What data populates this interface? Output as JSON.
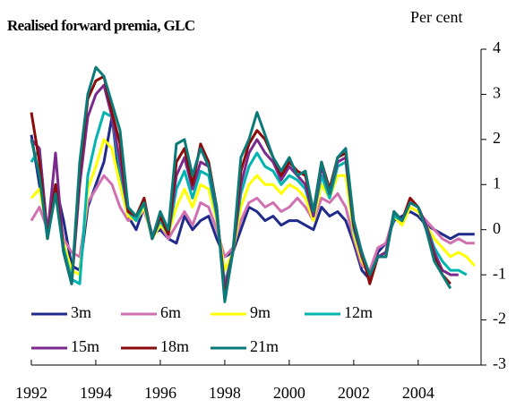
{
  "chart_data": {
    "type": "line",
    "title": "Realised forward premia, GLC",
    "ylabel": "Per cent",
    "x": [
      1992,
      1992.25,
      1992.5,
      1992.75,
      1993,
      1993.25,
      1993.5,
      1993.75,
      1994,
      1994.25,
      1994.5,
      1994.75,
      1995,
      1995.25,
      1995.5,
      1995.75,
      1996,
      1996.25,
      1996.5,
      1996.75,
      1997,
      1997.25,
      1997.5,
      1997.75,
      1998,
      1998.25,
      1998.5,
      1998.75,
      1999,
      1999.25,
      1999.5,
      1999.75,
      2000,
      2000.25,
      2000.5,
      2000.75,
      2001,
      2001.25,
      2001.5,
      2001.75,
      2002,
      2002.25,
      2002.5,
      2002.75,
      2003,
      2003.25,
      2003.5,
      2003.75,
      2004,
      2004.25,
      2004.5,
      2004.75,
      2005,
      2005.25,
      2005.5,
      2005.75
    ],
    "series": [
      {
        "name": "3m",
        "color": "#1f2a8a",
        "values": [
          2.1,
          1.0,
          0.0,
          1.0,
          0.2,
          -0.8,
          -0.9,
          0.5,
          1.0,
          1.5,
          2.5,
          1.0,
          0.3,
          0.0,
          0.5,
          -0.1,
          0.0,
          -0.2,
          -0.3,
          0.3,
          0.0,
          0.2,
          0.3,
          -0.2,
          -0.6,
          -0.5,
          0.0,
          0.5,
          0.4,
          0.2,
          0.3,
          0.1,
          0.2,
          0.2,
          0.1,
          0.0,
          0.5,
          0.3,
          0.4,
          0.2,
          -0.3,
          -0.9,
          -1.1,
          -0.5,
          -0.3,
          0.2,
          0.3,
          0.4,
          0.3,
          0.1,
          0.0,
          -0.1,
          -0.2,
          -0.1,
          -0.1,
          -0.1
        ]
      },
      {
        "name": "6m",
        "color": "#d070b0",
        "values": [
          0.2,
          0.5,
          0.0,
          0.8,
          -0.2,
          -0.5,
          -0.6,
          0.6,
          0.9,
          1.2,
          1.0,
          0.5,
          0.2,
          0.3,
          0.4,
          -0.1,
          0.1,
          -0.2,
          0.1,
          0.4,
          0.1,
          0.6,
          0.5,
          0.0,
          -0.6,
          -0.4,
          0.2,
          0.6,
          0.7,
          0.5,
          0.6,
          0.4,
          0.5,
          0.7,
          0.5,
          0.2,
          0.7,
          0.6,
          0.8,
          0.5,
          -0.2,
          -0.8,
          -0.9,
          -0.4,
          -0.3,
          0.3,
          0.2,
          0.5,
          0.4,
          0.2,
          0.0,
          -0.2,
          -0.3,
          -0.2,
          -0.3,
          -0.3
        ]
      },
      {
        "name": "9m",
        "color": "#ffff00",
        "values": [
          0.7,
          0.9,
          0.0,
          0.9,
          -0.3,
          -0.9,
          -1.0,
          0.9,
          1.4,
          2.0,
          1.8,
          1.0,
          0.3,
          0.2,
          0.5,
          -0.2,
          0.1,
          -0.1,
          0.5,
          0.9,
          0.5,
          1.0,
          0.9,
          0.2,
          -0.9,
          -0.5,
          0.5,
          1.0,
          1.2,
          1.0,
          1.0,
          0.8,
          1.0,
          0.9,
          0.7,
          0.2,
          1.0,
          0.7,
          1.2,
          1.2,
          -0.1,
          -0.7,
          -1.0,
          -0.6,
          -0.5,
          0.3,
          0.1,
          0.5,
          0.4,
          0.1,
          -0.2,
          -0.4,
          -0.6,
          -0.5,
          -0.6,
          -0.8
        ]
      },
      {
        "name": "12m",
        "color": "#00b4b0",
        "values": [
          1.5,
          1.8,
          -0.1,
          1.0,
          -0.4,
          -1.1,
          -1.2,
          1.2,
          2.0,
          2.6,
          2.5,
          1.3,
          0.4,
          0.2,
          0.6,
          -0.2,
          0.2,
          -0.1,
          0.9,
          1.3,
          0.7,
          1.3,
          1.2,
          0.3,
          -1.2,
          -0.5,
          0.8,
          1.4,
          1.7,
          1.4,
          1.3,
          1.0,
          1.2,
          1.1,
          0.9,
          0.3,
          1.2,
          0.7,
          1.4,
          1.5,
          0.0,
          -0.6,
          -1.0,
          -0.6,
          -0.5,
          0.3,
          0.2,
          0.6,
          0.5,
          0.1,
          -0.4,
          -0.7,
          -0.9,
          -0.9,
          -1.0,
          null
        ]
      },
      {
        "name": "15m",
        "color": "#7a2a8c",
        "values": [
          2.0,
          1.8,
          -0.1,
          1.7,
          -0.5,
          -1.2,
          1.0,
          2.5,
          3.0,
          3.2,
          2.5,
          1.5,
          0.4,
          0.3,
          0.6,
          -0.2,
          0.3,
          -0.1,
          1.2,
          1.6,
          0.9,
          1.5,
          1.4,
          0.4,
          -1.3,
          -0.5,
          1.0,
          1.7,
          2.0,
          1.7,
          1.5,
          1.1,
          1.4,
          1.2,
          1.0,
          0.3,
          1.4,
          0.8,
          1.5,
          1.6,
          0.1,
          -0.6,
          -1.1,
          -0.6,
          -0.5,
          0.4,
          0.2,
          0.6,
          0.5,
          0.1,
          -0.5,
          -0.9,
          -1.0,
          -1.0,
          null,
          null
        ]
      },
      {
        "name": "18m",
        "color": "#8b0a0a",
        "values": [
          2.6,
          1.5,
          -0.2,
          1.0,
          -0.5,
          -1.2,
          1.3,
          2.9,
          3.3,
          3.4,
          2.6,
          1.9,
          0.4,
          0.3,
          0.7,
          -0.2,
          0.3,
          -0.1,
          1.5,
          1.8,
          1.0,
          1.9,
          1.5,
          0.5,
          -1.5,
          -0.5,
          1.3,
          1.9,
          2.2,
          2.0,
          1.6,
          1.2,
          1.5,
          1.3,
          1.2,
          0.4,
          1.5,
          0.9,
          1.6,
          1.7,
          0.1,
          -0.5,
          -1.2,
          -0.6,
          -0.6,
          0.4,
          0.2,
          0.7,
          0.5,
          0.0,
          -0.6,
          -1.0,
          -1.2,
          null,
          null,
          null
        ]
      },
      {
        "name": "21m",
        "color": "#0a7a78",
        "values": [
          2.0,
          1.2,
          -0.2,
          0.8,
          -0.5,
          -1.2,
          1.5,
          3.0,
          3.6,
          3.4,
          2.8,
          2.2,
          0.5,
          0.3,
          0.6,
          -0.2,
          0.4,
          0.0,
          1.9,
          2.0,
          1.2,
          1.8,
          1.4,
          0.5,
          -1.6,
          -0.5,
          1.6,
          2.0,
          2.6,
          2.1,
          1.6,
          1.3,
          1.6,
          1.2,
          1.3,
          0.4,
          1.5,
          0.8,
          1.6,
          1.8,
          0.2,
          -0.5,
          -1.0,
          -0.6,
          -0.6,
          0.4,
          0.2,
          0.6,
          0.5,
          0.0,
          -0.7,
          -1.0,
          -1.3,
          null,
          null,
          null
        ]
      }
    ],
    "xlim": [
      1992,
      2005.95
    ],
    "xticks": [
      1992,
      1994,
      1996,
      1998,
      2000,
      2002,
      2004
    ],
    "ylim": [
      -3,
      4
    ],
    "yticks": [
      -3,
      -2,
      -1,
      0,
      1,
      2,
      3,
      4
    ],
    "grid": false,
    "legend": "lower left"
  }
}
